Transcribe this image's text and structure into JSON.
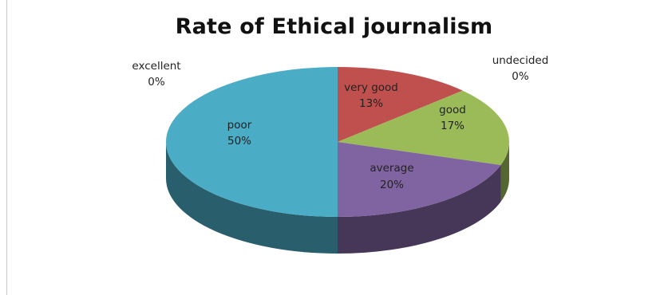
{
  "chart_data": {
    "type": "pie",
    "title": "Rate of Ethical journalism",
    "slices": [
      {
        "label": "very good",
        "value": 13,
        "display": "13%",
        "color": "#c0504d"
      },
      {
        "label": "good",
        "value": 17,
        "display": "17%",
        "color": "#9bbb59"
      },
      {
        "label": "average",
        "value": 20,
        "display": "20%",
        "color": "#8064a2"
      },
      {
        "label": "poor",
        "value": 50,
        "display": "50%",
        "color": "#4bacc6"
      },
      {
        "label": "excellent",
        "value": 0,
        "display": "0%",
        "color": "#f79646"
      },
      {
        "label": "undecided",
        "value": 0,
        "display": "0%",
        "color": "#4f81bd"
      }
    ],
    "style": "3d-pie"
  }
}
